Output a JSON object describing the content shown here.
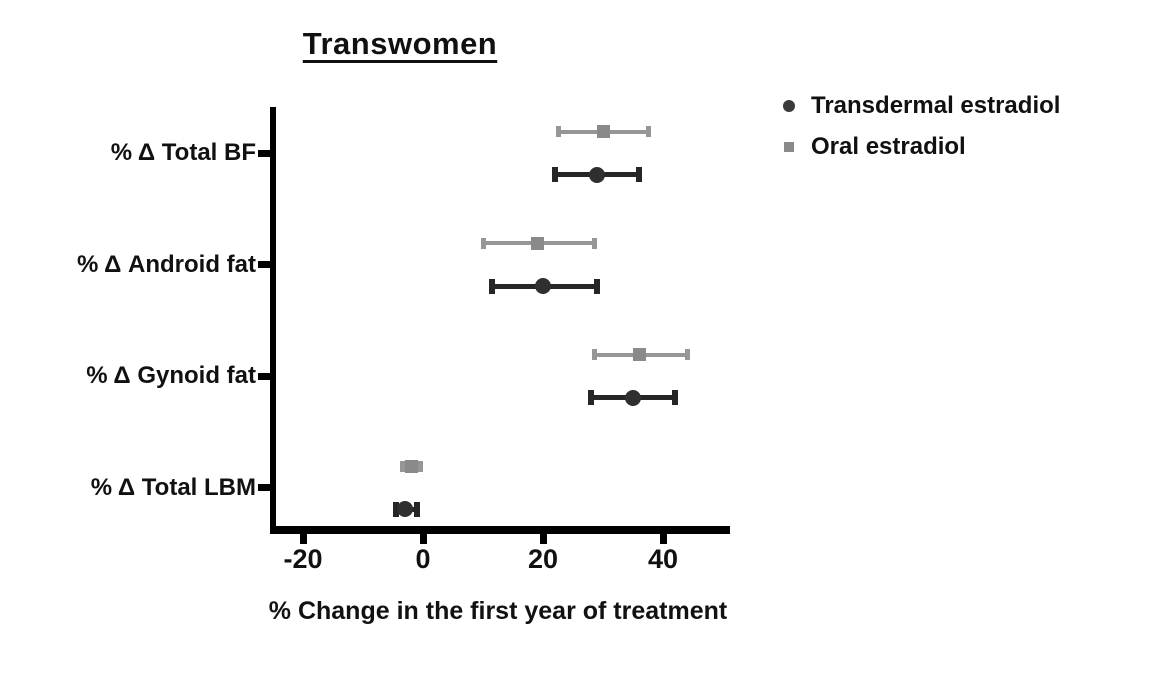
{
  "chart": {
    "title": "Transwomen",
    "xlabel": "% Change in the first year of treatment"
  },
  "legend": {
    "position": "top-right",
    "items": [
      {
        "label": "Transdermal estradiol",
        "marker": "circle",
        "color": "#3a3a3a"
      },
      {
        "label": "Oral estradiol",
        "marker": "square",
        "color": "#8a8a8a"
      }
    ]
  },
  "chart_data": {
    "type": "scatter",
    "subtype": "horizontal-dot-plot-with-error-bars",
    "title": "Transwomen",
    "xlabel": "% Change in the first year of treatment",
    "categories": [
      "% Δ Total BF",
      "% Δ Android fat",
      "% Δ Gynoid fat",
      "% Δ Total LBM"
    ],
    "x_ticks": [
      -20,
      0,
      20,
      40
    ],
    "xlim": [
      -25,
      51
    ],
    "grid": false,
    "legend_position": "top-right",
    "series": [
      {
        "name": "Transdermal estradiol",
        "marker": "circle",
        "marker_color": "#2f2f2f",
        "line_color": "#262626",
        "values": [
          29,
          20,
          35,
          -3
        ],
        "ci_low": [
          22,
          11.5,
          28,
          -4.5
        ],
        "ci_high": [
          36,
          29,
          42,
          -1
        ]
      },
      {
        "name": "Oral estradiol",
        "marker": "square",
        "marker_color": "#8a8a8a",
        "line_color": "#969696",
        "values": [
          30,
          19,
          36,
          -2
        ],
        "ci_low": [
          22.5,
          10,
          28.5,
          -3.5
        ],
        "ci_high": [
          37.5,
          28.5,
          44,
          -0.5
        ]
      }
    ]
  }
}
